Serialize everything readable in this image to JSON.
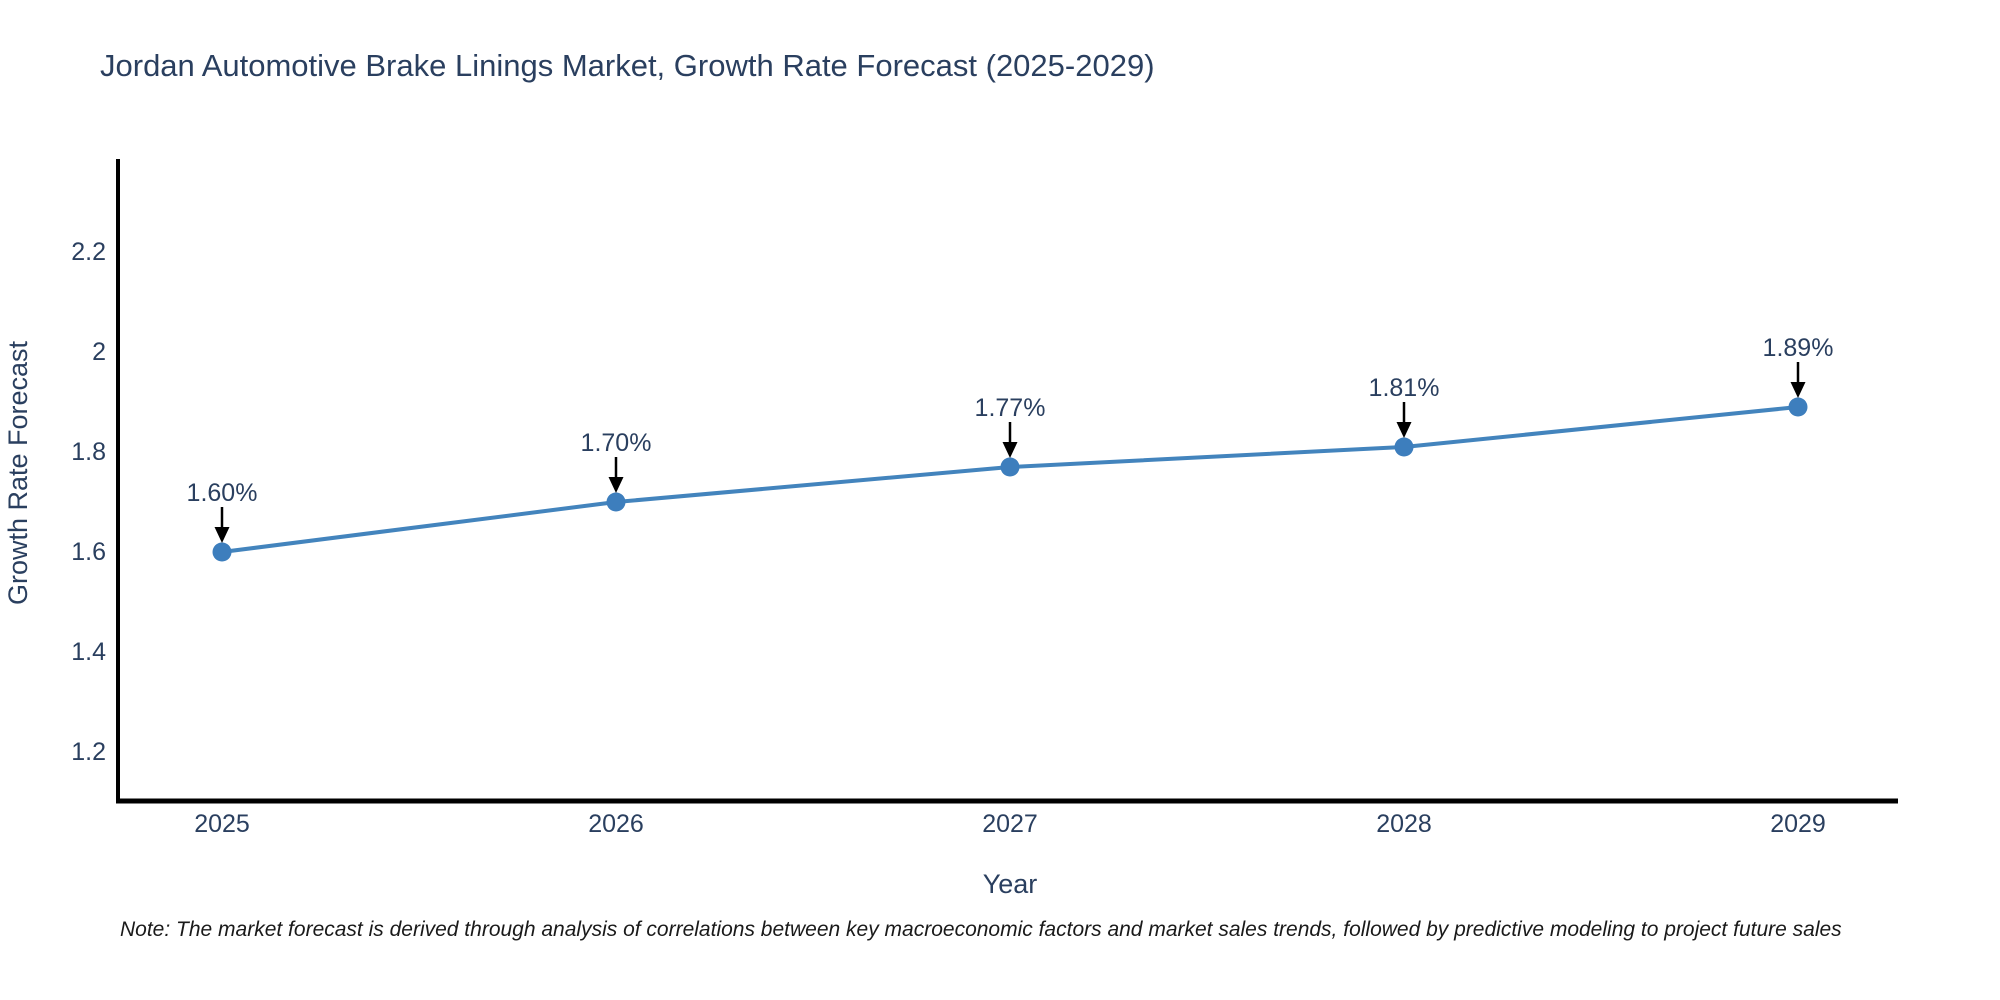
{
  "page": {
    "background": "#ffffff"
  },
  "chart_data": {
    "type": "line",
    "title": "Jordan Automotive Brake Linings Market, Growth Rate Forecast (2025-2029)",
    "xlabel": "Year",
    "ylabel": "Growth Rate Forecast",
    "categories": [
      "2025",
      "2026",
      "2027",
      "2028",
      "2029"
    ],
    "series": [
      {
        "name": "Growth Rate Forecast",
        "values": [
          1.6,
          1.7,
          1.77,
          1.81,
          1.89
        ]
      }
    ],
    "point_labels": [
      "1.60%",
      "1.70%",
      "1.77%",
      "1.81%",
      "1.89%"
    ],
    "ytick_labels": [
      "1.2",
      "1.4",
      "1.6",
      "1.8",
      "2",
      "2.2"
    ],
    "yticks": [
      1.2,
      1.4,
      1.6,
      1.8,
      2.0,
      2.2
    ],
    "ylim": [
      1.1,
      2.39
    ],
    "grid": false,
    "legend_position": "none",
    "colors": {
      "line": "#4384bd",
      "marker": "#3d7ebd",
      "axis": "#000000",
      "text": "#2a3f5f",
      "annotation_arrow": "#000000",
      "note": "#1a1a1a"
    }
  },
  "note": {
    "text": "Note: The market forecast is derived through analysis of correlations between key macroeconomic factors and market sales trends, followed by predictive modeling to project future sales"
  }
}
